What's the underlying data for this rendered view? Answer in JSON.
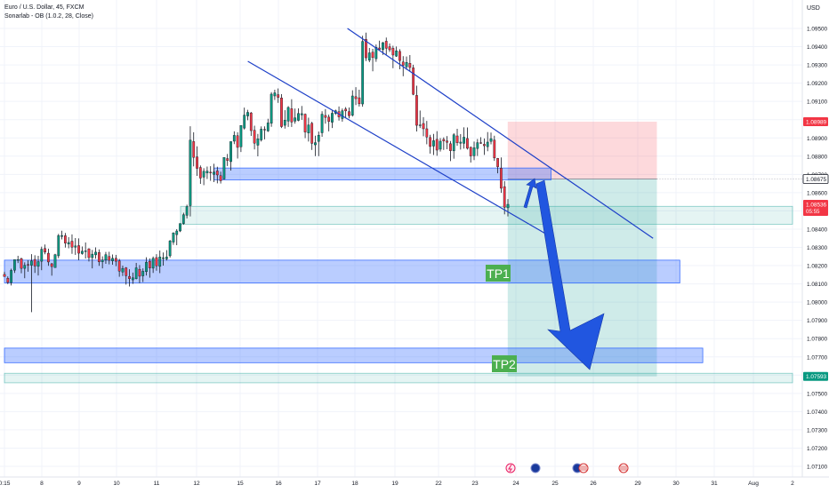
{
  "header": {
    "symbol": "Euro / U.S. Dollar, 45, FXCM",
    "indicator": "Sonarlab - OB (1.0.2, 28, Close)",
    "currency": "USD"
  },
  "price_axis": {
    "ticks": [
      "1.09500",
      "1.09400",
      "1.09300",
      "1.09200",
      "1.09100",
      "1.09000",
      "1.08900",
      "1.08800",
      "1.08700",
      "1.08600",
      "1.08500",
      "1.08400",
      "1.08300",
      "1.08200",
      "1.08100",
      "1.08000",
      "1.07900",
      "1.07800",
      "1.07700",
      "1.07600",
      "1.07500",
      "1.07400",
      "1.07300",
      "1.07200",
      "1.07100"
    ],
    "badges": [
      {
        "text": "1.08989",
        "price": 1.08989,
        "color": "#f23645",
        "kind": "fill"
      },
      {
        "text": "1.08675",
        "price": 1.08675,
        "color": "#131722",
        "kind": "outline"
      },
      {
        "text": "1.08536",
        "price": 1.08536,
        "color": "#f23645",
        "kind": "fill",
        "sub": "05:55"
      },
      {
        "text": "1.07593",
        "price": 1.07593,
        "color": "#089981",
        "kind": "fill"
      }
    ]
  },
  "time_axis": {
    "ticks": [
      {
        "label": "0:15",
        "day": 0
      },
      {
        "label": "8",
        "day": 1
      },
      {
        "label": "9",
        "day": 2
      },
      {
        "label": "10",
        "day": 3
      },
      {
        "label": "11",
        "day": 4
      },
      {
        "label": "12",
        "day": 5
      },
      {
        "label": "15",
        "day": 6
      },
      {
        "label": "16",
        "day": 7
      },
      {
        "label": "17",
        "day": 8
      },
      {
        "label": "18",
        "day": 9
      },
      {
        "label": "19",
        "day": 10
      },
      {
        "label": "22",
        "day": 11
      },
      {
        "label": "23",
        "day": 12
      },
      {
        "label": "24",
        "day": 13
      },
      {
        "label": "25",
        "day": 14
      },
      {
        "label": "26",
        "day": 15
      },
      {
        "label": "29",
        "day": 16
      },
      {
        "label": "30",
        "day": 17
      },
      {
        "label": "31",
        "day": 18
      },
      {
        "label": "Aug",
        "day": 19
      },
      {
        "label": "2",
        "day": 20
      }
    ]
  },
  "annotations": {
    "tp1_label": "TP1",
    "tp2_label": "TP2"
  },
  "colors": {
    "up": "#089981",
    "down": "#f23645",
    "wick": "#131722",
    "zone": "#2962ff",
    "channel": "#1e40c8",
    "arrow": "#2156e0",
    "profit": "#26a69a",
    "loss": "#f7525f",
    "label_green": "#4caf50"
  },
  "chart_data": {
    "type": "candlestick",
    "title": "Euro / U.S. Dollar, 45, FXCM",
    "ylim": [
      1.0703,
      1.0962
    ],
    "trend_channel": [
      {
        "from": {
          "day": 8.8,
          "price": 1.095
        },
        "to": {
          "day": 16.4,
          "price": 1.0835
        }
      },
      {
        "from": {
          "day": 6.2,
          "price": 1.0932
        },
        "to": {
          "day": 13.8,
          "price": 1.0837
        }
      }
    ],
    "zones": [
      {
        "name": "order-block-upper",
        "from_day": 5.4,
        "to_day": 13.9,
        "low": 1.0867,
        "high": 1.08735
      },
      {
        "name": "order-block-mid",
        "from_day": 0,
        "to_day": 17.1,
        "low": 1.08105,
        "high": 1.0823
      },
      {
        "name": "order-block-low",
        "from_day": 0,
        "to_day": 17.7,
        "low": 1.07668,
        "high": 1.07748
      },
      {
        "name": "entry-band",
        "from_day": 4.6,
        "to_day": 20,
        "low": 1.08427,
        "high": 1.08525
      },
      {
        "name": "target-band",
        "from_day": 0,
        "to_day": 20,
        "low": 1.07558,
        "high": 1.0761
      }
    ],
    "position": {
      "entry_day": 12.8,
      "exit_day": 16.5,
      "entry": 1.08675,
      "stop": 1.08989,
      "target": 1.07593
    },
    "candles": [
      [
        1.08152,
        1.08167,
        1.0814,
        1.0814
      ],
      [
        1.08131,
        1.08141,
        1.08099,
        1.08108
      ],
      [
        1.08107,
        1.08183,
        1.08091,
        1.08174
      ],
      [
        1.08175,
        1.08233,
        1.0816,
        1.08233
      ],
      [
        1.08232,
        1.08254,
        1.08214,
        1.08233
      ],
      [
        1.08238,
        1.08244,
        1.08158,
        1.08185
      ],
      [
        1.08185,
        1.08218,
        1.08131,
        1.08202
      ],
      [
        1.08206,
        1.0823,
        1.08167,
        1.08203
      ],
      [
        1.08202,
        1.08263,
        1.07945,
        1.08226
      ],
      [
        1.08234,
        1.08257,
        1.0816,
        1.08198
      ],
      [
        1.08196,
        1.08254,
        1.08146,
        1.08222
      ],
      [
        1.08224,
        1.08304,
        1.08175,
        1.0829
      ],
      [
        1.08294,
        1.08316,
        1.08262,
        1.08274
      ],
      [
        1.08268,
        1.08293,
        1.08199,
        1.0822
      ],
      [
        1.0821,
        1.08215,
        1.08145,
        1.08195
      ],
      [
        1.08189,
        1.08265,
        1.08188,
        1.0826
      ],
      [
        1.08254,
        1.08374,
        1.08241,
        1.08365
      ],
      [
        1.0836,
        1.08391,
        1.08344,
        1.08365
      ],
      [
        1.08364,
        1.08379,
        1.08299,
        1.08323
      ],
      [
        1.08318,
        1.08356,
        1.08295,
        1.08327
      ],
      [
        1.08334,
        1.08371,
        1.08265,
        1.08301
      ],
      [
        1.08301,
        1.08351,
        1.08259,
        1.08308
      ],
      [
        1.0831,
        1.08349,
        1.0823,
        1.08268
      ],
      [
        1.08266,
        1.08305,
        1.0826,
        1.08279
      ],
      [
        1.08279,
        1.08327,
        1.08239,
        1.08281
      ],
      [
        1.08292,
        1.08296,
        1.08223,
        1.08244
      ],
      [
        1.08244,
        1.08286,
        1.08185,
        1.08263
      ],
      [
        1.08259,
        1.083,
        1.08238,
        1.08274
      ],
      [
        1.08272,
        1.08289,
        1.08199,
        1.08221
      ],
      [
        1.08221,
        1.08251,
        1.08185,
        1.08231
      ],
      [
        1.0823,
        1.08275,
        1.0821,
        1.0826
      ],
      [
        1.0825,
        1.08276,
        1.08207,
        1.08229
      ],
      [
        1.08226,
        1.08261,
        1.08205,
        1.0824
      ],
      [
        1.0824,
        1.08259,
        1.08197,
        1.08224
      ],
      [
        1.08226,
        1.08237,
        1.08139,
        1.0817
      ],
      [
        1.08165,
        1.082,
        1.08143,
        1.08185
      ],
      [
        1.08188,
        1.08192,
        1.08096,
        1.08145
      ],
      [
        1.08141,
        1.0818,
        1.08086,
        1.08128
      ],
      [
        1.08122,
        1.08162,
        1.081,
        1.08133
      ],
      [
        1.08128,
        1.08215,
        1.08125,
        1.08188
      ],
      [
        1.0818,
        1.08203,
        1.08104,
        1.08142
      ],
      [
        1.08144,
        1.08185,
        1.0811,
        1.08169
      ],
      [
        1.08167,
        1.08246,
        1.08146,
        1.08219
      ],
      [
        1.08224,
        1.0824,
        1.08134,
        1.08187
      ],
      [
        1.08186,
        1.0825,
        1.0816,
        1.0824
      ],
      [
        1.08244,
        1.08263,
        1.08172,
        1.08199
      ],
      [
        1.08196,
        1.08283,
        1.08159,
        1.08248
      ],
      [
        1.08241,
        1.08272,
        1.082,
        1.08243
      ],
      [
        1.08237,
        1.08285,
        1.08228,
        1.08247
      ],
      [
        1.08254,
        1.08341,
        1.08244,
        1.08335
      ],
      [
        1.08329,
        1.08383,
        1.08314,
        1.08379
      ],
      [
        1.0837,
        1.084,
        1.08312,
        1.0839
      ],
      [
        1.0839,
        1.08431,
        1.08384,
        1.08431
      ],
      [
        1.0843,
        1.0849,
        1.08424,
        1.08479
      ],
      [
        1.08476,
        1.08534,
        1.08459,
        1.08523
      ],
      [
        1.08529,
        1.08964,
        1.0847,
        1.08888
      ],
      [
        1.0888,
        1.08931,
        1.08744,
        1.08793
      ],
      [
        1.08796,
        1.08854,
        1.08692,
        1.08733
      ],
      [
        1.08738,
        1.08749,
        1.08648,
        1.0868
      ],
      [
        1.08685,
        1.08734,
        1.08641,
        1.08717
      ],
      [
        1.08708,
        1.08743,
        1.08675,
        1.08718
      ],
      [
        1.08712,
        1.08745,
        1.08665,
        1.08708
      ],
      [
        1.087,
        1.08758,
        1.08658,
        1.08713
      ],
      [
        1.08719,
        1.08742,
        1.08651,
        1.08697
      ],
      [
        1.08693,
        1.08715,
        1.0865,
        1.08665
      ],
      [
        1.08675,
        1.08793,
        1.08671,
        1.08793
      ],
      [
        1.08787,
        1.08812,
        1.08746,
        1.08776
      ],
      [
        1.0877,
        1.0888,
        1.08721,
        1.0888
      ],
      [
        1.08882,
        1.08936,
        1.08866,
        1.08914
      ],
      [
        1.08912,
        1.08931,
        1.08787,
        1.08848
      ],
      [
        1.08851,
        1.08968,
        1.08823,
        1.08968
      ],
      [
        1.08954,
        1.09066,
        1.08946,
        1.09025
      ],
      [
        1.0902,
        1.09054,
        1.08997,
        1.0904
      ],
      [
        1.09037,
        1.09042,
        1.08911,
        1.0894
      ],
      [
        1.08942,
        1.08967,
        1.08837,
        1.08871
      ],
      [
        1.0886,
        1.08922,
        1.08799,
        1.08895
      ],
      [
        1.08889,
        1.08963,
        1.0888,
        1.08948
      ],
      [
        1.08947,
        1.08963,
        1.08892,
        1.08943
      ],
      [
        1.08938,
        1.09005,
        1.08933,
        1.08982
      ],
      [
        1.0898,
        1.09151,
        1.08961,
        1.0914
      ],
      [
        1.0913,
        1.09164,
        1.09108,
        1.09147
      ],
      [
        1.09137,
        1.09171,
        1.09092,
        1.09122
      ],
      [
        1.09119,
        1.0914,
        1.08954,
        1.08962
      ],
      [
        1.08969,
        1.09052,
        1.08951,
        1.08997
      ],
      [
        1.08992,
        1.09074,
        1.0896,
        1.09067
      ],
      [
        1.0906,
        1.09112,
        1.0896,
        1.08987
      ],
      [
        1.08992,
        1.09061,
        1.08978,
        1.0901
      ],
      [
        1.08996,
        1.09062,
        1.08991,
        1.09034
      ],
      [
        1.09026,
        1.09075,
        1.08999,
        1.09033
      ],
      [
        1.0903,
        1.09034,
        1.08899,
        1.08932
      ],
      [
        1.08927,
        1.09011,
        1.0888,
        1.08971
      ],
      [
        1.0898,
        1.08988,
        1.08834,
        1.0887
      ],
      [
        1.08862,
        1.08912,
        1.088,
        1.08874
      ],
      [
        1.08881,
        1.08935,
        1.088,
        1.08915
      ],
      [
        1.08928,
        1.09046,
        1.08906,
        1.0903
      ],
      [
        1.09023,
        1.09058,
        1.08978,
        1.09012
      ],
      [
        1.09014,
        1.09028,
        1.08936,
        1.0899
      ],
      [
        1.08986,
        1.09051,
        1.08954,
        1.09035
      ],
      [
        1.09034,
        1.09055,
        1.09026,
        1.09049
      ],
      [
        1.09044,
        1.09072,
        1.08995,
        1.09015
      ],
      [
        1.09006,
        1.09061,
        1.08989,
        1.09049
      ],
      [
        1.09058,
        1.09069,
        1.09008,
        1.09048
      ],
      [
        1.09044,
        1.09067,
        1.09007,
        1.09022
      ],
      [
        1.09024,
        1.09161,
        1.09017,
        1.0913
      ],
      [
        1.09126,
        1.09178,
        1.0908,
        1.09115
      ],
      [
        1.0912,
        1.09164,
        1.09072,
        1.09087
      ],
      [
        1.09086,
        1.0946,
        1.09071,
        1.09429
      ],
      [
        1.0944,
        1.09477,
        1.09321,
        1.09339
      ],
      [
        1.09326,
        1.09393,
        1.09315,
        1.09366
      ],
      [
        1.0937,
        1.09388,
        1.09265,
        1.0934
      ],
      [
        1.09334,
        1.09412,
        1.09317,
        1.09397
      ],
      [
        1.09393,
        1.09433,
        1.0938,
        1.09385
      ],
      [
        1.09384,
        1.09426,
        1.09355,
        1.09422
      ],
      [
        1.0943,
        1.0945,
        1.09353,
        1.09391
      ],
      [
        1.094,
        1.09418,
        1.09371,
        1.09383
      ],
      [
        1.09391,
        1.09405,
        1.09282,
        1.09354
      ],
      [
        1.09348,
        1.09401,
        1.09344,
        1.09377
      ],
      [
        1.09374,
        1.09386,
        1.09276,
        1.09324
      ],
      [
        1.09316,
        1.09348,
        1.09238,
        1.09298
      ],
      [
        1.0929,
        1.09346,
        1.09273,
        1.09314
      ],
      [
        1.09309,
        1.09354,
        1.09265,
        1.09286
      ],
      [
        1.09284,
        1.09301,
        1.09134,
        1.09139
      ],
      [
        1.09133,
        1.09186,
        1.08935,
        1.08969
      ],
      [
        1.0897,
        1.0905,
        1.08954,
        1.08971
      ],
      [
        1.08979,
        1.09014,
        1.08909,
        1.0895
      ],
      [
        1.0895,
        1.08993,
        1.08865,
        1.08905
      ],
      [
        1.08902,
        1.08917,
        1.08814,
        1.08853
      ],
      [
        1.08855,
        1.08922,
        1.08806,
        1.08885
      ],
      [
        1.08892,
        1.08937,
        1.08802,
        1.08833
      ],
      [
        1.08838,
        1.08899,
        1.08825,
        1.08882
      ],
      [
        1.08892,
        1.08903,
        1.08834,
        1.08883
      ],
      [
        1.08883,
        1.0891,
        1.08838,
        1.08876
      ],
      [
        1.08868,
        1.08883,
        1.08773,
        1.0883
      ],
      [
        1.08829,
        1.08926,
        1.08786,
        1.08917
      ],
      [
        1.08911,
        1.0895,
        1.08857,
        1.08873
      ],
      [
        1.08871,
        1.08921,
        1.08836,
        1.08877
      ],
      [
        1.0887,
        1.08958,
        1.08841,
        1.08904
      ],
      [
        1.08897,
        1.08957,
        1.08836,
        1.08843
      ],
      [
        1.08849,
        1.08852,
        1.08765,
        1.08801
      ],
      [
        1.08802,
        1.0888,
        1.08778,
        1.08846
      ],
      [
        1.08842,
        1.08894,
        1.08801,
        1.08874
      ],
      [
        1.08874,
        1.08904,
        1.08867,
        1.08873
      ],
      [
        1.08865,
        1.08897,
        1.08807,
        1.08857
      ],
      [
        1.08852,
        1.08932,
        1.08827,
        1.08877
      ],
      [
        1.08881,
        1.08929,
        1.08865,
        1.08896
      ],
      [
        1.08888,
        1.08912,
        1.08774,
        1.0879
      ],
      [
        1.08788,
        1.0879,
        1.08706,
        1.08742
      ],
      [
        1.08734,
        1.08793,
        1.08599,
        1.08624
      ],
      [
        1.08633,
        1.08663,
        1.08481,
        1.0852
      ],
      [
        1.08517,
        1.08565,
        1.0847,
        1.08536
      ]
    ]
  }
}
